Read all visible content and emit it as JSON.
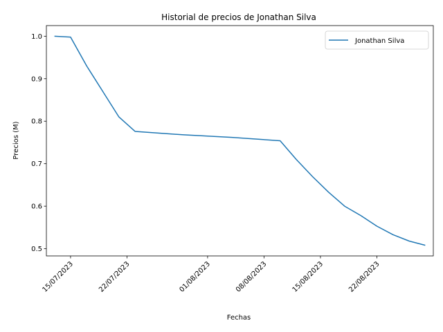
{
  "chart_data": {
    "type": "line",
    "title": "Historial de precios de Jonathan Silva",
    "xlabel": "Fechas",
    "ylabel": "Precios (M)",
    "x_axis_type": "date",
    "xlim": [
      "2023-07-12",
      "2023-08-29"
    ],
    "ylim": [
      0.483,
      1.025
    ],
    "x_ticks": [
      {
        "date": "2023-07-15",
        "label": "15/07/2023"
      },
      {
        "date": "2023-07-22",
        "label": "22/07/2023"
      },
      {
        "date": "2023-08-01",
        "label": "01/08/2023"
      },
      {
        "date": "2023-08-08",
        "label": "08/08/2023"
      },
      {
        "date": "2023-08-15",
        "label": "15/08/2023"
      },
      {
        "date": "2023-08-22",
        "label": "22/08/2023"
      }
    ],
    "y_ticks": [
      {
        "value": 0.5,
        "label": "0.5"
      },
      {
        "value": 0.6,
        "label": "0.6"
      },
      {
        "value": 0.7,
        "label": "0.7"
      },
      {
        "value": 0.8,
        "label": "0.8"
      },
      {
        "value": 0.9,
        "label": "0.9"
      },
      {
        "value": 1.0,
        "label": "1.0"
      }
    ],
    "grid": false,
    "legend": {
      "position": "top-right",
      "entries": [
        "Jonathan Silva"
      ]
    },
    "series": [
      {
        "name": "Jonathan Silva",
        "color": "#1f77b4",
        "points": [
          {
            "x": "2023-07-13",
            "y": 1.0
          },
          {
            "x": "2023-07-15",
            "y": 0.998
          },
          {
            "x": "2023-07-17",
            "y": 0.93
          },
          {
            "x": "2023-07-19",
            "y": 0.87
          },
          {
            "x": "2023-07-21",
            "y": 0.81
          },
          {
            "x": "2023-07-23",
            "y": 0.776
          },
          {
            "x": "2023-07-29",
            "y": 0.768
          },
          {
            "x": "2023-08-04",
            "y": 0.762
          },
          {
            "x": "2023-08-10",
            "y": 0.754
          },
          {
            "x": "2023-08-12",
            "y": 0.71
          },
          {
            "x": "2023-08-14",
            "y": 0.67
          },
          {
            "x": "2023-08-16",
            "y": 0.633
          },
          {
            "x": "2023-08-18",
            "y": 0.6
          },
          {
            "x": "2023-08-20",
            "y": 0.578
          },
          {
            "x": "2023-08-22",
            "y": 0.553
          },
          {
            "x": "2023-08-24",
            "y": 0.533
          },
          {
            "x": "2023-08-26",
            "y": 0.518
          },
          {
            "x": "2023-08-28",
            "y": 0.508
          }
        ]
      }
    ]
  }
}
